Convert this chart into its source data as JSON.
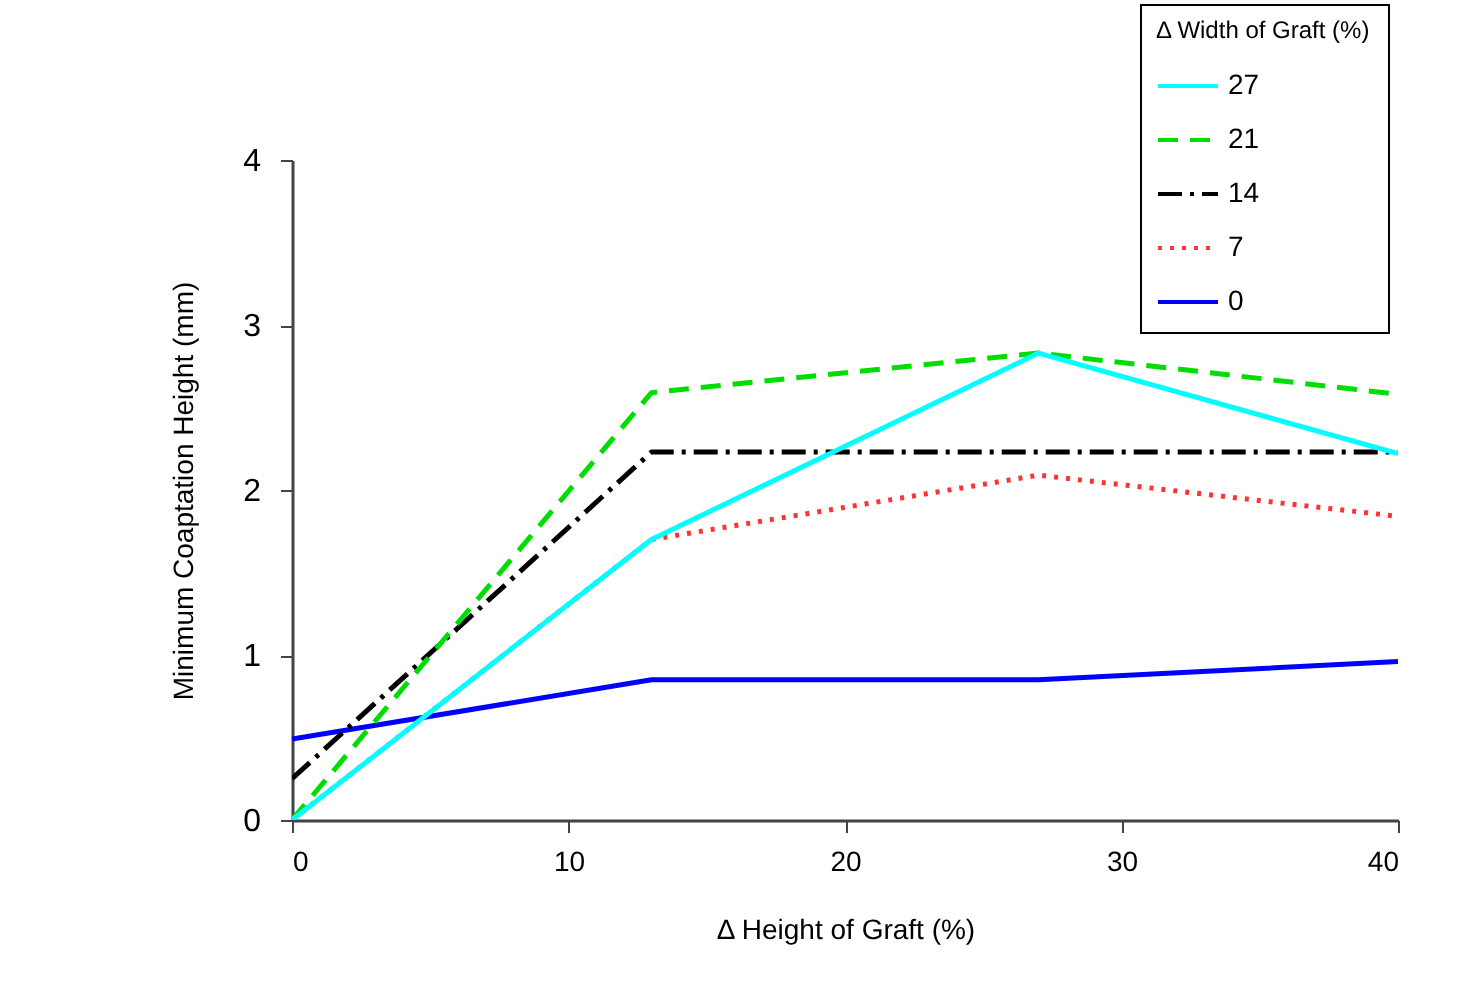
{
  "chart_data": {
    "type": "line",
    "xlabel": "Δ Height of Graft (%)",
    "ylabel": "Minimum Coaptation Height (mm)",
    "legend_title": "Δ Width of Graft (%)",
    "x": [
      0,
      13,
      27,
      40
    ],
    "series": [
      {
        "name": "27",
        "color": "#00ffff",
        "line_style": "solid",
        "values": [
          0,
          1.7,
          2.83,
          2.22
        ]
      },
      {
        "name": "21",
        "color": "#00dd00",
        "line_style": "dashed",
        "values": [
          0,
          2.59,
          2.83,
          2.58
        ]
      },
      {
        "name": "14",
        "color": "#000000",
        "line_style": "dashdot",
        "values": [
          0.25,
          2.23,
          2.23,
          2.23
        ]
      },
      {
        "name": "7",
        "color": "#ff3333",
        "line_style": "dotted",
        "values": [
          0,
          1.7,
          2.09,
          1.84
        ]
      },
      {
        "name": "0",
        "color": "#0000ff",
        "line_style": "solid",
        "values": [
          0.49,
          0.85,
          0.85,
          0.96
        ]
      }
    ],
    "xlim": [
      0,
      40
    ],
    "ylim": [
      0,
      4
    ],
    "xticks": [
      0,
      10,
      20,
      30,
      40
    ],
    "yticks": [
      0,
      1,
      2,
      3,
      4
    ],
    "grid": false,
    "legend": "top right"
  }
}
